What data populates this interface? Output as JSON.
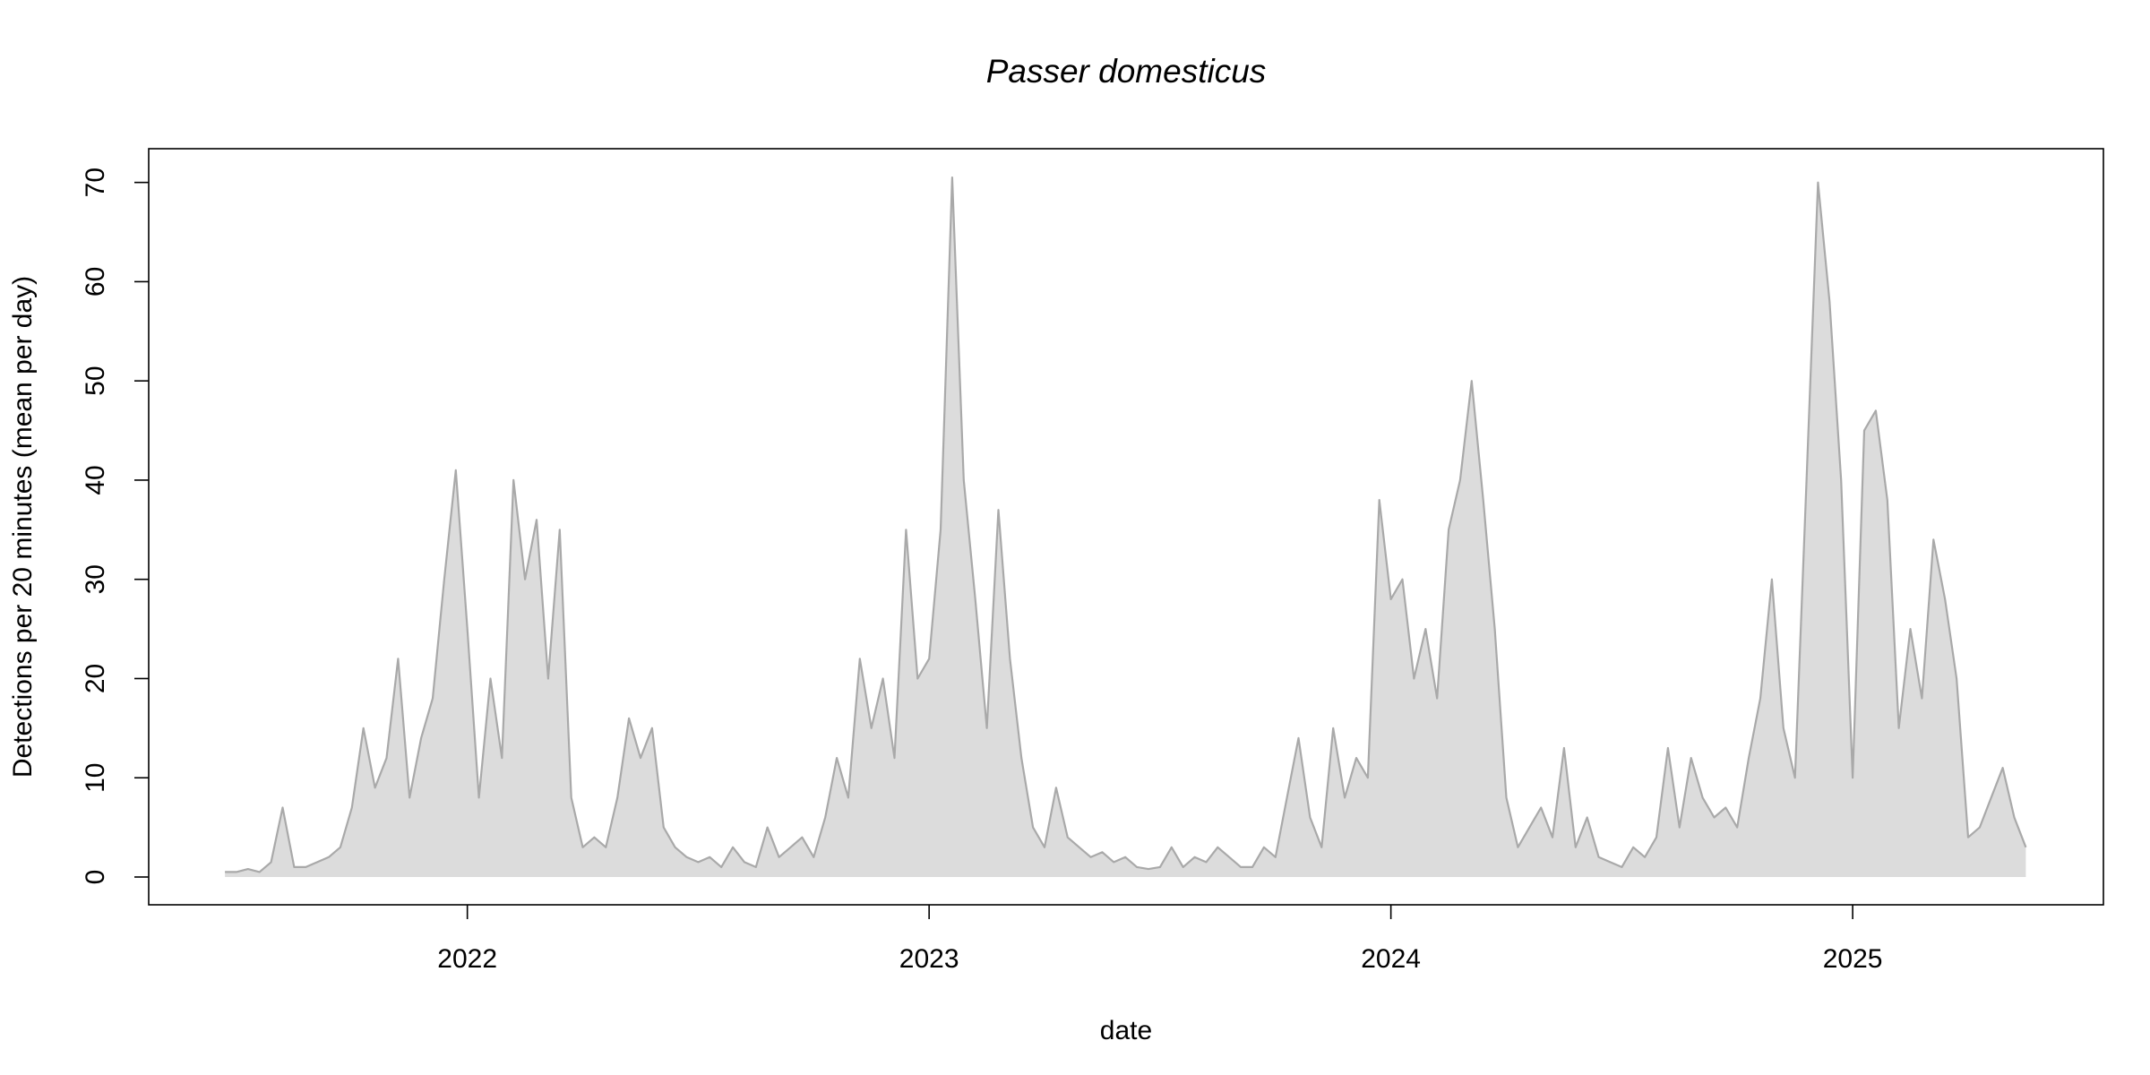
{
  "chart_data": {
    "type": "area",
    "title": "Passer domesticus",
    "x_label": "date",
    "y_label": "Detections per 20 minutes (mean per day)",
    "x": [
      2021.475,
      2021.5,
      2021.525,
      2021.55,
      2021.575,
      2021.6,
      2021.625,
      2021.65,
      2021.675,
      2021.7,
      2021.725,
      2021.75,
      2021.775,
      2021.8,
      2021.825,
      2021.85,
      2021.875,
      2021.9,
      2021.925,
      2021.95,
      2021.975,
      2022.0,
      2022.025,
      2022.05,
      2022.075,
      2022.1,
      2022.125,
      2022.15,
      2022.175,
      2022.2,
      2022.225,
      2022.25,
      2022.275,
      2022.3,
      2022.325,
      2022.35,
      2022.375,
      2022.4,
      2022.425,
      2022.45,
      2022.475,
      2022.5,
      2022.525,
      2022.55,
      2022.575,
      2022.6,
      2022.625,
      2022.65,
      2022.675,
      2022.7,
      2022.725,
      2022.75,
      2022.775,
      2022.8,
      2022.825,
      2022.85,
      2022.875,
      2022.9,
      2022.925,
      2022.95,
      2022.975,
      2023.0,
      2023.025,
      2023.05,
      2023.075,
      2023.1,
      2023.125,
      2023.15,
      2023.175,
      2023.2,
      2023.225,
      2023.25,
      2023.275,
      2023.3,
      2023.325,
      2023.35,
      2023.375,
      2023.4,
      2023.425,
      2023.45,
      2023.475,
      2023.5,
      2023.525,
      2023.55,
      2023.575,
      2023.6,
      2023.625,
      2023.65,
      2023.675,
      2023.7,
      2023.725,
      2023.75,
      2023.775,
      2023.8,
      2023.825,
      2023.85,
      2023.875,
      2023.9,
      2023.925,
      2023.95,
      2023.975,
      2024.0,
      2024.025,
      2024.05,
      2024.075,
      2024.1,
      2024.125,
      2024.15,
      2024.175,
      2024.2,
      2024.225,
      2024.25,
      2024.275,
      2024.3,
      2024.325,
      2024.35,
      2024.375,
      2024.4,
      2024.425,
      2024.45,
      2024.475,
      2024.5,
      2024.525,
      2024.55,
      2024.575,
      2024.6,
      2024.625,
      2024.65,
      2024.675,
      2024.7,
      2024.725,
      2024.75,
      2024.775,
      2024.8,
      2024.825,
      2024.85,
      2024.875,
      2024.9,
      2024.925,
      2024.95,
      2024.975,
      2025.0,
      2025.025,
      2025.05,
      2025.075,
      2025.1,
      2025.125,
      2025.15,
      2025.175,
      2025.2,
      2025.225,
      2025.25,
      2025.275,
      2025.3,
      2025.325,
      2025.35,
      2025.375
    ],
    "values": [
      0.5,
      0.5,
      0.8,
      0.5,
      1.5,
      7,
      1,
      1,
      1.5,
      2,
      3,
      7,
      15,
      9,
      12,
      22,
      8,
      14,
      18,
      30,
      41,
      25,
      8,
      20,
      12,
      40,
      30,
      36,
      20,
      35,
      8,
      3,
      4,
      3,
      8,
      16,
      12,
      15,
      5,
      3,
      2,
      1.5,
      2,
      1,
      3,
      1.5,
      1,
      5,
      2,
      3,
      4,
      2,
      6,
      12,
      8,
      22,
      15,
      20,
      12,
      35,
      20,
      22,
      35,
      70.5,
      40,
      28,
      15,
      37,
      22,
      12,
      5,
      3,
      9,
      4,
      3,
      2,
      2.5,
      1.5,
      2,
      1,
      0.8,
      1,
      3,
      1,
      2,
      1.5,
      3,
      2,
      1,
      1,
      3,
      2,
      8,
      14,
      6,
      3,
      15,
      8,
      12,
      10,
      38,
      28,
      30,
      20,
      25,
      18,
      35,
      40,
      50,
      38,
      25,
      8,
      3,
      5,
      7,
      4,
      13,
      3,
      6,
      2,
      1.5,
      1,
      3,
      2,
      4,
      13,
      5,
      12,
      8,
      6,
      7,
      5,
      12,
      18,
      30,
      15,
      10,
      40,
      70,
      58,
      40,
      10,
      45,
      47,
      38,
      15,
      25,
      18,
      34,
      28,
      20,
      4,
      5,
      8,
      11,
      6,
      3
    ],
    "xlim": [
      2021.31,
      2025.543
    ],
    "ylim": [
      -2.8,
      73.4
    ],
    "xticks": [
      2022,
      2023,
      2024,
      2025
    ],
    "yticks": [
      0,
      10,
      20,
      30,
      40,
      50,
      60,
      70
    ],
    "color": "#a9a9a9",
    "fill_color": "#dcdcdc"
  }
}
